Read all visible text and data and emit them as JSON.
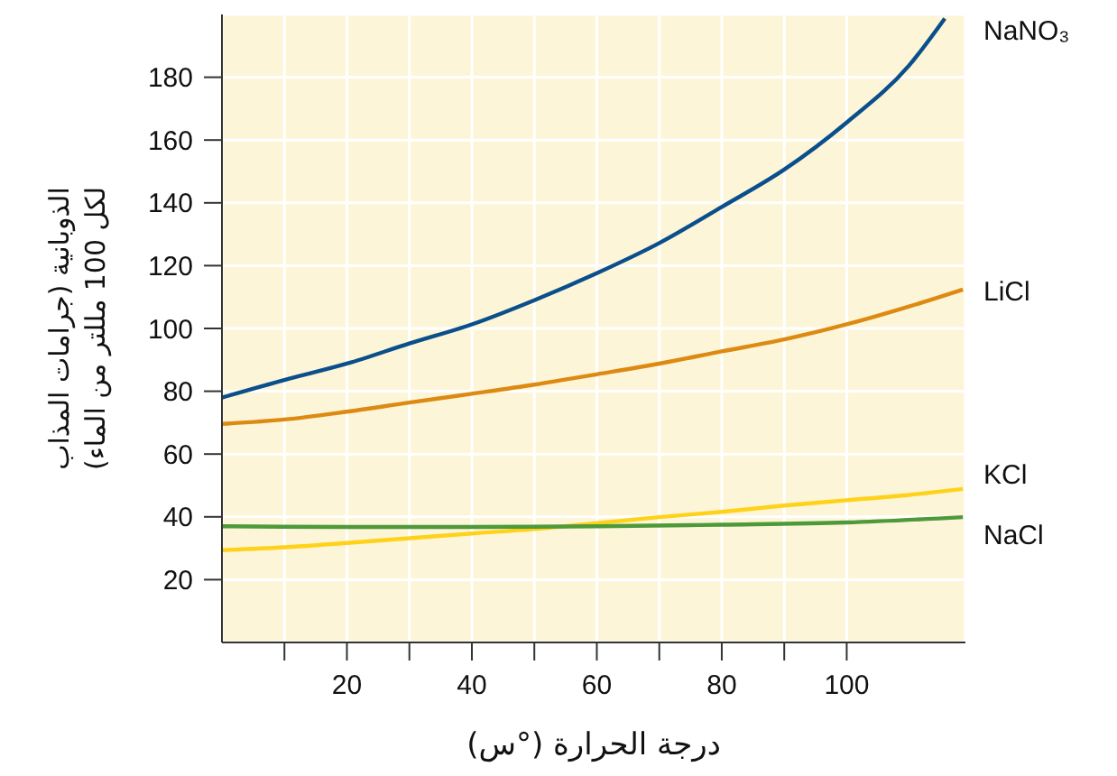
{
  "chart_data": {
    "type": "line",
    "xlabel": "درجة الحرارة (°س)",
    "ylabel": "الذوبانية (جرامات المذاب لكل 100 مللتر من الماء)",
    "xlim": [
      0,
      119
    ],
    "ylim": [
      0,
      200
    ],
    "xticks": [
      {
        "value": 10,
        "label": null
      },
      20,
      {
        "value": 30,
        "label": null
      },
      40,
      {
        "value": 50,
        "label": null
      },
      60,
      {
        "value": 70,
        "label": null
      },
      80,
      {
        "value": 90,
        "label": null
      },
      100
    ],
    "yticks": [
      20,
      40,
      60,
      80,
      100,
      120,
      140,
      160,
      180
    ],
    "grid": true,
    "legend": false,
    "marker": "none",
    "line_style": "solid",
    "series": [
      {
        "name": "NaNO₃",
        "color": "#0a4f8c",
        "x": [
          0,
          10,
          20,
          30,
          40,
          50,
          60,
          70,
          80,
          90,
          100,
          110,
          115.7
        ],
        "values": [
          78,
          83.6,
          88.8,
          95.2,
          101.3,
          109,
          117.6,
          127.2,
          138.7,
          150.6,
          165.6,
          183.8,
          198.7
        ]
      },
      {
        "name": "LiCl",
        "color": "#dd8a12",
        "x": [
          0,
          10,
          20,
          30,
          40,
          50,
          60,
          70,
          80,
          90,
          100,
          110,
          118.6
        ],
        "values": [
          69.6,
          71,
          73.5,
          76.4,
          79.2,
          82.1,
          85.4,
          88.8,
          92.7,
          96.5,
          101.3,
          107,
          112.4
        ]
      },
      {
        "name": "KCl",
        "color": "#ffd21a",
        "x": [
          0,
          10,
          20,
          30,
          40,
          50,
          60,
          70,
          80,
          90,
          100,
          110,
          118.6
        ],
        "values": [
          29.4,
          30.3,
          31.7,
          33.2,
          34.7,
          36.1,
          38,
          39.9,
          41.6,
          43.6,
          45.3,
          47,
          48.9
        ]
      },
      {
        "name": "NaCl",
        "color": "#4e9a3a",
        "x": [
          0,
          20,
          40,
          60,
          80,
          100,
          118.6
        ],
        "values": [
          37,
          36.8,
          36.8,
          37,
          37.5,
          38.2,
          39.9
        ]
      }
    ]
  }
}
